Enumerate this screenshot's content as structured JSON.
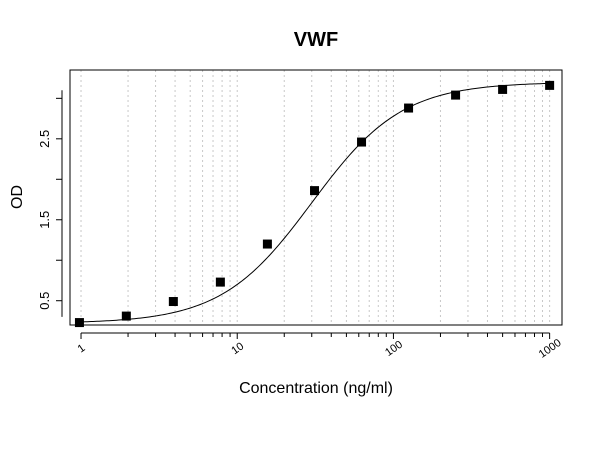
{
  "chart_data": {
    "type": "scatter",
    "title": "VWF",
    "xlabel": "Concentration (ng/ml)",
    "ylabel": "OD",
    "x_scale": "log",
    "xlim": [
      0.85,
      1200
    ],
    "ylim": [
      0.2,
      3.35
    ],
    "x_ticks": [
      1,
      10,
      100,
      1000
    ],
    "y_ticks": [
      0.5,
      1.5,
      2.5
    ],
    "grid": "vertical-dotted",
    "legend": "none",
    "marker_color": "#000000",
    "curve_color": "#000000",
    "grid_color": "#c8c8c8",
    "series": [
      {
        "marker": "square",
        "x": [
          0.977,
          1.95,
          3.9,
          7.8,
          15.6,
          31.25,
          62.5,
          125,
          250,
          500,
          1000
        ],
        "y": [
          0.23,
          0.31,
          0.49,
          0.73,
          1.2,
          1.86,
          2.46,
          2.88,
          3.04,
          3.11,
          3.16
        ]
      }
    ],
    "fit_curve": {
      "model": "4PL",
      "bottom": 0.22,
      "top": 3.2,
      "ec50": 30,
      "hill": 1.5
    }
  }
}
